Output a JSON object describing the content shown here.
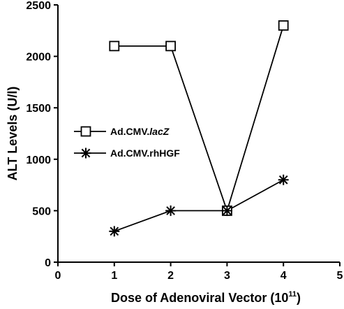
{
  "chart_data": {
    "type": "line",
    "title": "",
    "xlabel": {
      "main": "Dose of Adenoviral Vector (10",
      "sup": "11",
      "close": ")"
    },
    "ylabel": "ALT Levels (U/l)",
    "xlim": [
      0,
      5
    ],
    "ylim": [
      0,
      2500
    ],
    "x_ticks": [
      0,
      1,
      2,
      3,
      4,
      5
    ],
    "y_ticks": [
      0,
      500,
      1000,
      1500,
      2000,
      2500
    ],
    "grid": false,
    "legend_position": "left-middle",
    "series": [
      {
        "name": "Ad.CMV.lacZ",
        "name_parts": [
          "Ad.CMV.",
          "lacZ"
        ],
        "marker": "open-square",
        "color": "#000000",
        "x": [
          1,
          2,
          3,
          4
        ],
        "y": [
          2100,
          2100,
          500,
          2300
        ]
      },
      {
        "name": "Ad.CMV.rhHGF",
        "name_parts": [
          "Ad.CMV.rhHGF",
          ""
        ],
        "marker": "asterisk",
        "color": "#000000",
        "x": [
          1,
          2,
          3,
          4
        ],
        "y": [
          300,
          500,
          500,
          800
        ]
      }
    ]
  }
}
